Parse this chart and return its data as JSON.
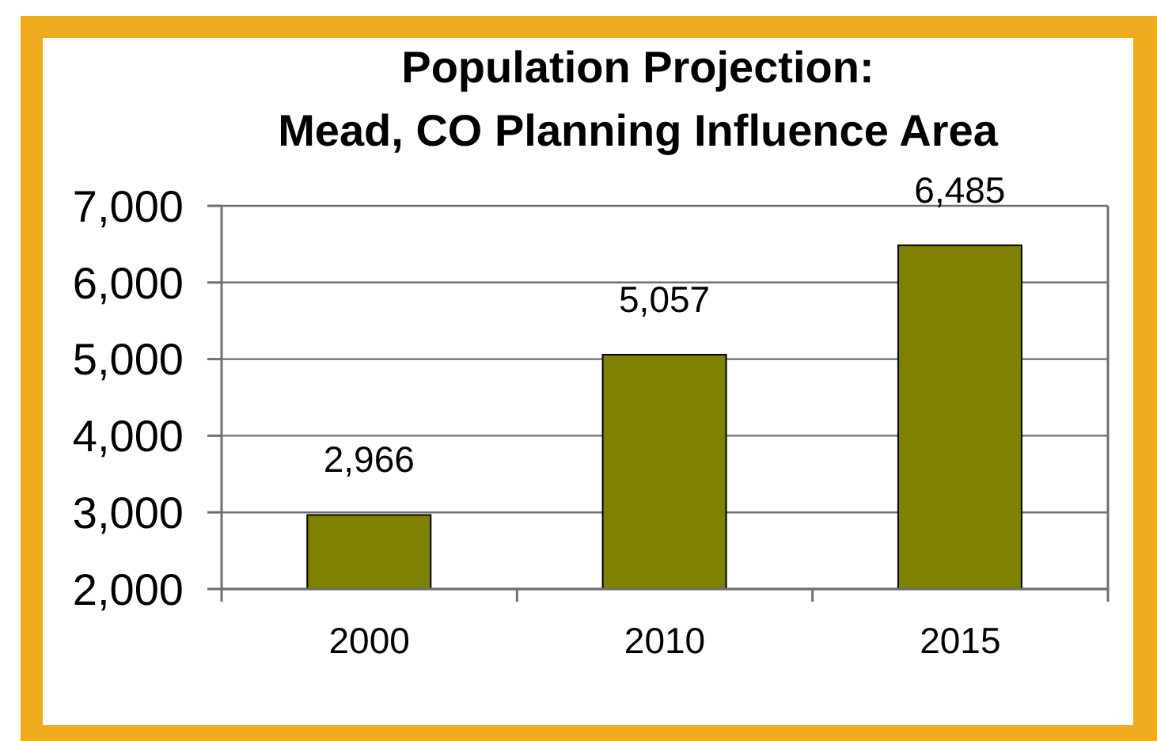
{
  "chart_data": {
    "type": "bar",
    "title": "Population Projection:\nMead, CO Planning Influence Area",
    "categories": [
      "2000",
      "2010",
      "2015"
    ],
    "values": [
      2966,
      5057,
      6485
    ],
    "color": "#808000",
    "value_labels": [
      "2,966",
      "5,057",
      "6,485"
    ],
    "ylim": [
      2000,
      7000
    ],
    "yticks": [
      {
        "value": 2000,
        "label": "2,000"
      },
      {
        "value": 3000,
        "label": "3,000"
      },
      {
        "value": 4000,
        "label": "4,000"
      },
      {
        "value": 5000,
        "label": "5,000"
      },
      {
        "value": 6000,
        "label": "6,000"
      },
      {
        "value": 7000,
        "label": "7,000"
      }
    ],
    "grid": "y"
  }
}
